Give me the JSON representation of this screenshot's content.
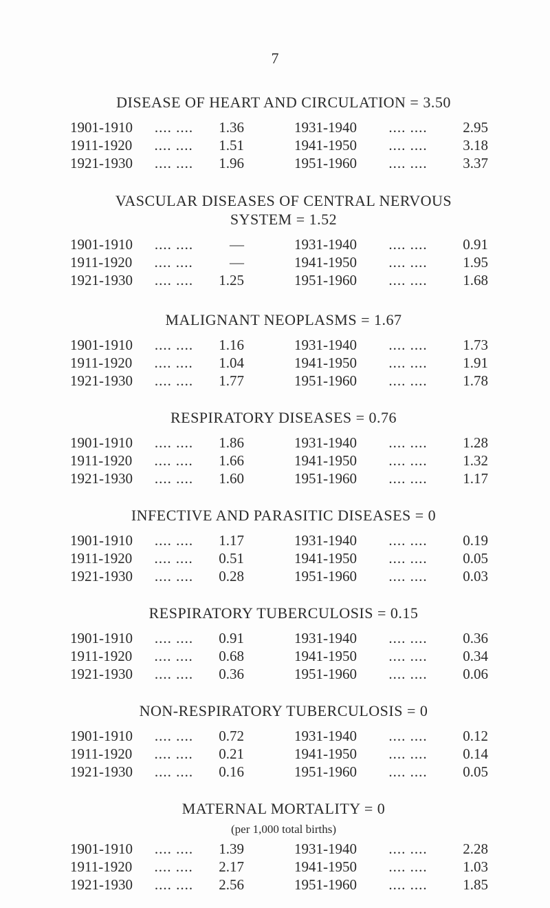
{
  "page_number": "7",
  "leader": ".... ....",
  "sections": [
    {
      "title": "DISEASE OF HEART AND CIRCULATION = 3.50",
      "rows": [
        {
          "left_period": "1901-1910",
          "left_value": "1.36",
          "right_period": "1931-1940",
          "right_value": "2.95"
        },
        {
          "left_period": "1911-1920",
          "left_value": "1.51",
          "right_period": "1941-1950",
          "right_value": "3.18"
        },
        {
          "left_period": "1921-1930",
          "left_value": "1.96",
          "right_period": "1951-1960",
          "right_value": "3.37"
        }
      ]
    },
    {
      "title": "VASCULAR DISEASES OF CENTRAL NERVOUS",
      "title_line2": "SYSTEM = 1.52",
      "rows": [
        {
          "left_period": "1901-1910",
          "left_value": "—",
          "right_period": "1931-1940",
          "right_value": "0.91"
        },
        {
          "left_period": "1911-1920",
          "left_value": "—",
          "right_period": "1941-1950",
          "right_value": "1.95"
        },
        {
          "left_period": "1921-1930",
          "left_value": "1.25",
          "right_period": "1951-1960",
          "right_value": "1.68"
        }
      ]
    },
    {
      "title": "MALIGNANT NEOPLASMS = 1.67",
      "rows": [
        {
          "left_period": "1901-1910",
          "left_value": "1.16",
          "right_period": "1931-1940",
          "right_value": "1.73"
        },
        {
          "left_period": "1911-1920",
          "left_value": "1.04",
          "right_period": "1941-1950",
          "right_value": "1.91"
        },
        {
          "left_period": "1921-1930",
          "left_value": "1.77",
          "right_period": "1951-1960",
          "right_value": "1.78"
        }
      ]
    },
    {
      "title": "RESPIRATORY DISEASES = 0.76",
      "rows": [
        {
          "left_period": "1901-1910",
          "left_value": "1.86",
          "right_period": "1931-1940",
          "right_value": "1.28"
        },
        {
          "left_period": "1911-1920",
          "left_value": "1.66",
          "right_period": "1941-1950",
          "right_value": "1.32"
        },
        {
          "left_period": "1921-1930",
          "left_value": "1.60",
          "right_period": "1951-1960",
          "right_value": "1.17"
        }
      ]
    },
    {
      "title": "INFECTIVE AND PARASITIC DISEASES = 0",
      "rows": [
        {
          "left_period": "1901-1910",
          "left_value": "1.17",
          "right_period": "1931-1940",
          "right_value": "0.19"
        },
        {
          "left_period": "1911-1920",
          "left_value": "0.51",
          "right_period": "1941-1950",
          "right_value": "0.05"
        },
        {
          "left_period": "1921-1930",
          "left_value": "0.28",
          "right_period": "1951-1960",
          "right_value": "0.03"
        }
      ]
    },
    {
      "title": "RESPIRATORY TUBERCULOSIS = 0.15",
      "rows": [
        {
          "left_period": "1901-1910",
          "left_value": "0.91",
          "right_period": "1931-1940",
          "right_value": "0.36"
        },
        {
          "left_period": "1911-1920",
          "left_value": "0.68",
          "right_period": "1941-1950",
          "right_value": "0.34"
        },
        {
          "left_period": "1921-1930",
          "left_value": "0.36",
          "right_period": "1951-1960",
          "right_value": "0.06"
        }
      ]
    },
    {
      "title": "NON-RESPIRATORY TUBERCULOSIS = 0",
      "rows": [
        {
          "left_period": "1901-1910",
          "left_value": "0.72",
          "right_period": "1931-1940",
          "right_value": "0.12"
        },
        {
          "left_period": "1911-1920",
          "left_value": "0.21",
          "right_period": "1941-1950",
          "right_value": "0.14"
        },
        {
          "left_period": "1921-1930",
          "left_value": "0.16",
          "right_period": "1951-1960",
          "right_value": "0.05"
        }
      ]
    },
    {
      "title": "MATERNAL MORTALITY = 0",
      "subtitle": "(per 1,000 total births)",
      "rows": [
        {
          "left_period": "1901-1910",
          "left_value": "1.39",
          "right_period": "1931-1940",
          "right_value": "2.28"
        },
        {
          "left_period": "1911-1920",
          "left_value": "2.17",
          "right_period": "1941-1950",
          "right_value": "1.03"
        },
        {
          "left_period": "1921-1930",
          "left_value": "2.56",
          "right_period": "1951-1960",
          "right_value": "1.85"
        }
      ]
    }
  ]
}
